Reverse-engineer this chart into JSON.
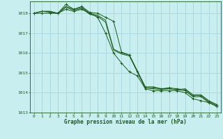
{
  "title": "Graphe pression niveau de la mer (hPa)",
  "background_color": "#c8eef0",
  "grid_color": "#a0d0d8",
  "line_color": "#1a5c1a",
  "xlim": [
    -0.5,
    23.5
  ],
  "ylim": [
    1013,
    1018.6
  ],
  "yticks": [
    1013,
    1014,
    1015,
    1016,
    1017,
    1018
  ],
  "xticks": [
    0,
    1,
    2,
    3,
    4,
    5,
    6,
    7,
    8,
    9,
    10,
    11,
    12,
    13,
    14,
    15,
    16,
    17,
    18,
    19,
    20,
    21,
    22,
    23
  ],
  "series_plain": [
    [
      1018.0,
      1018.1,
      1018.1,
      1018.0,
      1018.3,
      1018.15,
      1018.25,
      1017.95,
      1017.85,
      1017.55,
      1016.15,
      1015.95,
      1015.85,
      1015.05,
      1014.25,
      1014.2,
      1014.15,
      1014.2,
      1014.15,
      1014.1,
      1013.8,
      1013.8,
      1013.5,
      1013.35
    ],
    [
      1018.0,
      1018.1,
      1018.1,
      1018.0,
      1018.35,
      1018.2,
      1018.3,
      1018.0,
      1017.9,
      1017.65,
      1016.2,
      1016.0,
      1015.9,
      1015.1,
      1014.3,
      1014.3,
      1014.2,
      1014.2,
      1014.15,
      1014.2,
      1013.9,
      1013.9,
      1013.6,
      1013.4
    ]
  ],
  "series_marked_top": [
    1018.0,
    1018.1,
    1018.05,
    1018.0,
    1018.45,
    1018.2,
    1018.35,
    1018.05,
    1018.0,
    1017.8,
    1017.6,
    1016.05,
    1015.9,
    1015.05,
    1014.25,
    1014.25,
    1014.2,
    1014.25,
    1014.2,
    1014.15,
    1013.85,
    1013.85,
    1013.55,
    1013.4
  ],
  "series_marked_bot": [
    1018.0,
    1018.0,
    1018.0,
    1018.0,
    1018.2,
    1018.1,
    1018.2,
    1018.0,
    1017.8,
    1017.0,
    1016.0,
    1015.5,
    1015.05,
    1014.85,
    1014.2,
    1014.1,
    1014.1,
    1014.1,
    1014.1,
    1014.0,
    1013.7,
    1013.6,
    1013.5,
    1013.3
  ]
}
